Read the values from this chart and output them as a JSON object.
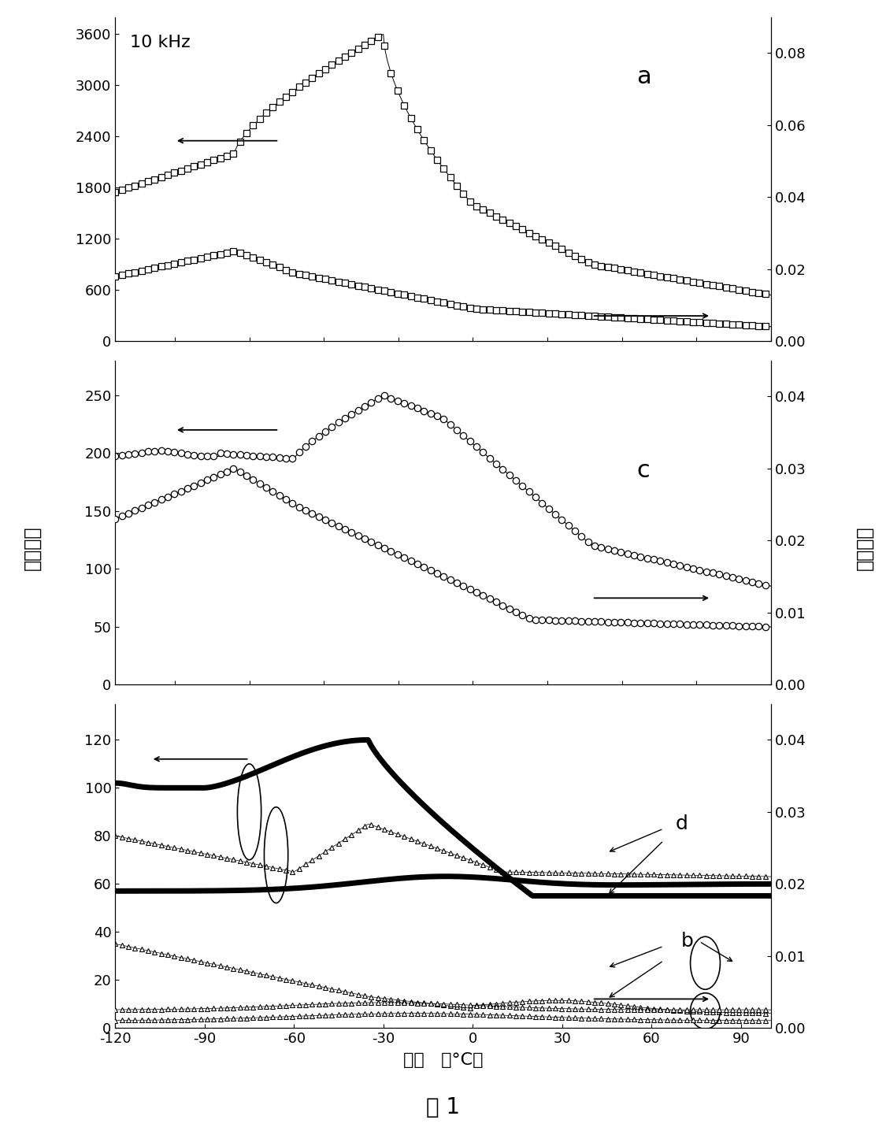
{
  "xmin": -120,
  "xmax": 100,
  "xticks": [
    -120,
    -90,
    -60,
    -30,
    0,
    30,
    60,
    90
  ],
  "xlabel": "温度   （°C）",
  "ylabel_left": "介电常数",
  "ylabel_right": "介电损耗",
  "panel_a_label": "a",
  "panel_c_label": "c",
  "freq_label": "10 kHz",
  "fig_caption": "图 1",
  "panel_a": {
    "eps_ylim": [
      0,
      3800
    ],
    "eps_yticks": [
      0,
      600,
      1200,
      1800,
      2400,
      3000,
      3600
    ],
    "loss_ylim": [
      0.0,
      0.09
    ],
    "loss_yticks": [
      0.0,
      0.02,
      0.04,
      0.06,
      0.08
    ]
  },
  "panel_c": {
    "eps_ylim": [
      0,
      280
    ],
    "eps_yticks": [
      0,
      50,
      100,
      150,
      200,
      250
    ],
    "loss_ylim": [
      0.0,
      0.045
    ],
    "loss_yticks": [
      0.0,
      0.01,
      0.02,
      0.03,
      0.04
    ]
  },
  "panel_bd": {
    "eps_ylim": [
      0,
      135
    ],
    "eps_yticks": [
      0,
      20,
      40,
      60,
      80,
      100,
      120
    ],
    "loss_ylim": [
      0.0,
      0.045
    ],
    "loss_yticks": [
      0.0,
      0.01,
      0.02,
      0.03,
      0.04
    ]
  }
}
